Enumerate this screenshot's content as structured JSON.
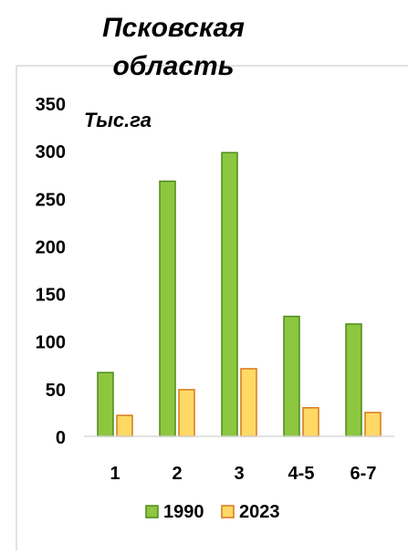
{
  "chart_data": {
    "type": "bar",
    "title": "Псковская область",
    "title_lines": [
      "Псковская",
      "область"
    ],
    "unit_label": "Тыс.га",
    "categories": [
      "1",
      "2",
      "3",
      "4-5",
      "6-7"
    ],
    "series": [
      {
        "name": "1990",
        "values": [
          67,
          268,
          298,
          126,
          118
        ],
        "fill": "#8dc63f",
        "stroke": "#4e8a1c"
      },
      {
        "name": "2023",
        "values": [
          22,
          49,
          71,
          30,
          25
        ],
        "fill": "#ffd966",
        "stroke": "#d7781c"
      }
    ],
    "ylim": [
      0,
      350
    ],
    "yticks": [
      0,
      50,
      100,
      150,
      200,
      250,
      300,
      350
    ],
    "grid": false,
    "legend_position": "bottom"
  }
}
